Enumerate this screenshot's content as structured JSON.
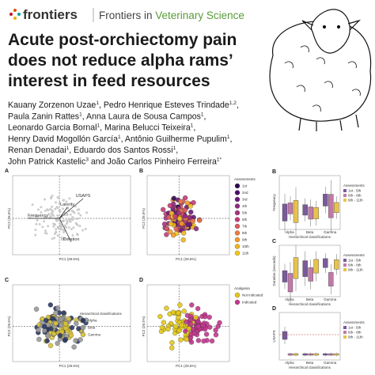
{
  "header": {
    "logo": "frontiers",
    "journal_prefix": "Frontiers in ",
    "journal_name": "Veterinary Science"
  },
  "title_lines": [
    "Acute post-orchiectomy pain",
    "does not reduce alpha rams’",
    "interest in feed resources"
  ],
  "author_lines": [
    [
      {
        "text": "Kauany Zorzenon Uzae",
        "sup": "1"
      },
      {
        "text": ", Pedro Henrique Esteves Trindade",
        "sup": "1,2"
      },
      {
        "text": ","
      }
    ],
    [
      {
        "text": "Paula Zanin Rattes",
        "sup": "1"
      },
      {
        "text": ", Anna Laura de Sousa Campos",
        "sup": "1"
      },
      {
        "text": ","
      }
    ],
    [
      {
        "text": "Leonardo Garcia Bornal",
        "sup": "1"
      },
      {
        "text": ", Marina Belucci Teixeira",
        "sup": "1"
      },
      {
        "text": ","
      }
    ],
    [
      {
        "text": "Henry David Mogollón García",
        "sup": "1"
      },
      {
        "text": ", Antônio Guilherme Pupulim",
        "sup": "1"
      },
      {
        "text": ","
      }
    ],
    [
      {
        "text": "Renan Denadai",
        "sup": "1"
      },
      {
        "text": ", Eduardo dos Santos Rossi",
        "sup": "1"
      },
      {
        "text": ","
      }
    ],
    [
      {
        "text": "John Patrick Kastelic",
        "sup": "3"
      },
      {
        "text": " and João Carlos Pinheiro Ferreira",
        "sup": "1*"
      }
    ]
  ],
  "pca_panels": [
    {
      "letter": "A",
      "x_label": "PC1 (29.5%)",
      "y_label": "PC2 (26.5%)",
      "vectors": [
        "USAPS",
        "Laterity",
        "Frequency",
        "Duration"
      ],
      "colors": [
        "#c8c8c8"
      ]
    },
    {
      "letter": "B",
      "x_label": "PC1 (29.5%)",
      "y_label": "PC2 (26.5%)",
      "legend_title": "Assessments",
      "legend": [
        "1st",
        "2nd",
        "3rd",
        "4th",
        "5th",
        "6th",
        "7th",
        "8th",
        "9th",
        "10th",
        "11th"
      ],
      "colors": [
        "#2d0a4e",
        "#4a0c6b",
        "#6b1a78",
        "#8c2981",
        "#a8327d",
        "#c43c75",
        "#dc5b5f",
        "#ed7a45",
        "#f29a2e",
        "#f0b51f",
        "#f2c81a"
      ]
    },
    {
      "letter": "C",
      "x_label": "PC1 (29.5%)",
      "y_label": "PC2 (26.5%)",
      "legend_title": "Hierarchical classifications",
      "legend": [
        "Alpha",
        "Beta",
        "Gamma"
      ],
      "colors": [
        "#2b3a67",
        "#9a9a9a",
        "#d9c33a"
      ]
    },
    {
      "letter": "D",
      "x_label": "PC1 (29.5%)",
      "y_label": "PC2 (26.5%)",
      "legend_title": "Analgesia",
      "legend": [
        "Not indicated",
        "Indicated"
      ],
      "colors": [
        "#e3c919",
        "#c2378e"
      ]
    }
  ],
  "box_panels": [
    {
      "letter": "B",
      "y_label": "Frequency",
      "x_label": "Hierarchical classifications",
      "categories": [
        "Alpha",
        "Beta",
        "Gamma"
      ],
      "legend_title": "Assessments",
      "legend": [
        "1st - 5th",
        "6th - 8th",
        "9th - 11th"
      ],
      "colors": [
        "#7a5a9a",
        "#c07aa8",
        "#e8c34a"
      ]
    },
    {
      "letter": "C",
      "y_label": "Duration (seconds)",
      "x_label": "Hierarchical classifications",
      "categories": [
        "Alpha",
        "Beta",
        "Gamma"
      ],
      "legend_title": "Assessments",
      "legend": [
        "1st - 5th",
        "6th - 8th",
        "9th - 11th"
      ],
      "colors": [
        "#7a5a9a",
        "#c07aa8",
        "#e8c34a"
      ]
    },
    {
      "letter": "D",
      "y_label": "USAPS",
      "x_label": "Hierarchical classifications",
      "categories": [
        "Alpha",
        "Beta",
        "Gamma"
      ],
      "legend_title": "Assessments",
      "legend": [
        "1st - 5th",
        "6th - 8th",
        "9th - 11th"
      ],
      "colors": [
        "#7a5a9a",
        "#c07aa8",
        "#e8c34a"
      ]
    }
  ]
}
